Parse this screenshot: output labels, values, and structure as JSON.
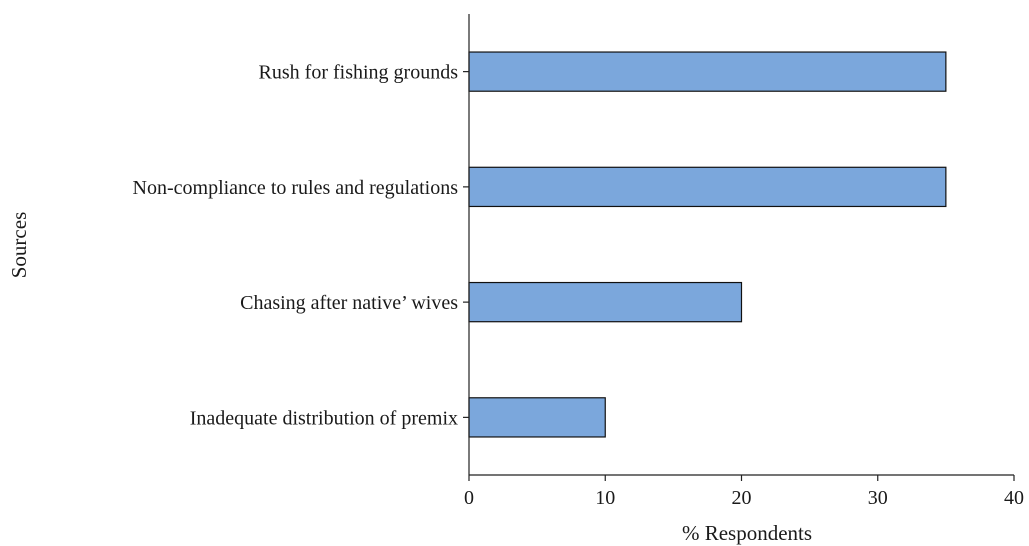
{
  "chart_data": {
    "type": "bar",
    "orientation": "horizontal",
    "categories": [
      "Rush for fishing grounds",
      "Non-compliance to rules and regulations",
      "Chasing after native’ wives",
      "Inadequate distribution of premix"
    ],
    "values": [
      35,
      35,
      20,
      10
    ],
    "xlabel": "% Respondents",
    "ylabel": "Sources",
    "xlim": [
      0,
      40
    ],
    "xticks": [
      "0",
      "10",
      "20",
      "30",
      "40"
    ],
    "grid": false,
    "bar_color": "#7ba7dc"
  }
}
